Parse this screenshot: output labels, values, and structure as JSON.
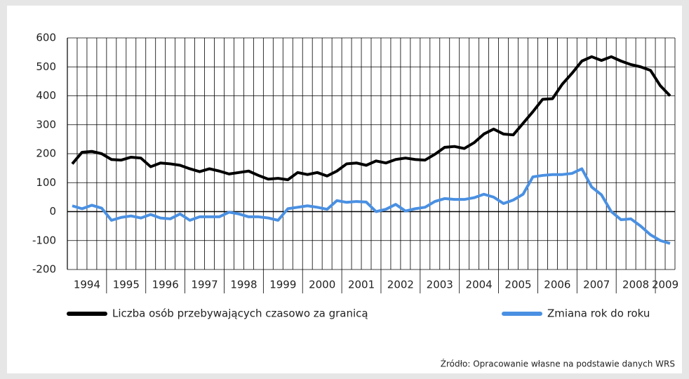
{
  "chart_data": {
    "type": "line",
    "categories": [
      "1994",
      null,
      null,
      null,
      "1995",
      null,
      null,
      null,
      "1996",
      null,
      null,
      null,
      "1997",
      null,
      null,
      null,
      "1998",
      null,
      null,
      null,
      "1999",
      null,
      null,
      null,
      "2000",
      null,
      null,
      null,
      "2001",
      null,
      null,
      null,
      "2002",
      null,
      null,
      null,
      "2003",
      null,
      null,
      null,
      "2004",
      null,
      null,
      null,
      "2005",
      null,
      null,
      null,
      "2006",
      null,
      null,
      null,
      "2007",
      null,
      null,
      null,
      "2008",
      null,
      null,
      null,
      "2009",
      null
    ],
    "series": [
      {
        "name": "Liczba osób przebywających czasowo za granicą",
        "color": "#000000",
        "values": [
          165,
          205,
          208,
          200,
          180,
          178,
          188,
          185,
          155,
          168,
          165,
          160,
          148,
          138,
          148,
          140,
          130,
          135,
          140,
          125,
          112,
          115,
          110,
          135,
          128,
          135,
          123,
          140,
          165,
          168,
          160,
          175,
          168,
          180,
          185,
          180,
          178,
          198,
          222,
          225,
          218,
          238,
          268,
          285,
          268,
          265,
          305,
          345,
          388,
          390,
          440,
          478,
          520,
          535,
          522,
          535,
          520,
          508,
          500,
          488,
          435,
          400
        ]
      },
      {
        "name": "Zmiana rok do roku",
        "color": "#4a90e2",
        "values": [
          20,
          10,
          22,
          12,
          -30,
          -20,
          -15,
          -22,
          -10,
          -22,
          -25,
          -8,
          -30,
          -18,
          -18,
          -18,
          -2,
          -8,
          -18,
          -18,
          -22,
          -30,
          10,
          15,
          20,
          15,
          8,
          38,
          32,
          35,
          33,
          0,
          8,
          25,
          2,
          10,
          15,
          35,
          45,
          42,
          42,
          48,
          60,
          50,
          28,
          40,
          60,
          120,
          125,
          128,
          128,
          132,
          148,
          85,
          58,
          0,
          -28,
          -25,
          -50,
          -80,
          -100,
          -110
        ]
      }
    ],
    "ylim": [
      -200,
      600
    ],
    "yticks": [
      -200,
      -100,
      0,
      100,
      200,
      300,
      400,
      500,
      600
    ],
    "grid": true,
    "source": "Źródło: Opracowanie własne na podstawie danych WRS"
  }
}
